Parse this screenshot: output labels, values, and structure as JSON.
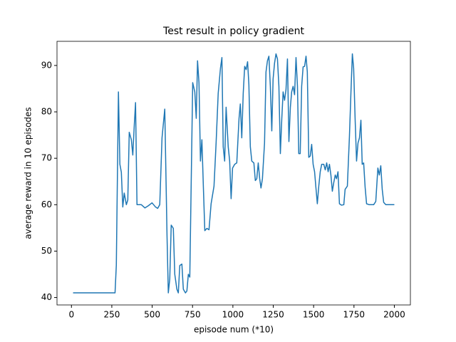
{
  "chart_data": {
    "type": "line",
    "title": "Test result in policy gradient",
    "x_label": "episode num (*10)",
    "y_label": "average reward in 10 episodes",
    "color": "#1f77b4",
    "x": [
      10,
      270,
      278,
      291,
      300,
      309,
      318,
      327,
      340,
      349,
      358,
      371,
      380,
      389,
      397,
      406,
      419,
      433,
      455,
      477,
      499,
      521,
      534,
      547,
      561,
      578,
      592,
      600,
      609,
      618,
      631,
      640,
      653,
      662,
      671,
      684,
      693,
      706,
      715,
      724,
      733,
      751,
      764,
      773,
      781,
      790,
      799,
      808,
      817,
      826,
      839,
      852,
      865,
      883,
      896,
      909,
      923,
      932,
      940,
      949,
      958,
      971,
      980,
      989,
      998,
      1011,
      1024,
      1038,
      1046,
      1055,
      1064,
      1073,
      1082,
      1091,
      1099,
      1108,
      1117,
      1130,
      1139,
      1148,
      1157,
      1166,
      1174,
      1183,
      1196,
      1205,
      1214,
      1223,
      1232,
      1241,
      1249,
      1258,
      1267,
      1276,
      1285,
      1294,
      1303,
      1311,
      1320,
      1329,
      1338,
      1347,
      1356,
      1364,
      1373,
      1382,
      1391,
      1400,
      1408,
      1417,
      1426,
      1435,
      1444,
      1453,
      1461,
      1470,
      1479,
      1488,
      1497,
      1506,
      1514,
      1523,
      1532,
      1541,
      1550,
      1563,
      1572,
      1581,
      1590,
      1598,
      1607,
      1616,
      1625,
      1634,
      1642,
      1651,
      1660,
      1673,
      1687,
      1695,
      1709,
      1722,
      1731,
      1740,
      1748,
      1757,
      1766,
      1775,
      1784,
      1793,
      1801,
      1810,
      1819,
      1828,
      1845,
      1872,
      1885,
      1898,
      1907,
      1916,
      1925,
      1934,
      1947,
      2000
    ],
    "values": [
      41,
      41,
      47,
      84.3,
      68.7,
      67,
      59.5,
      62.5,
      60,
      61,
      75.6,
      74,
      70.7,
      77,
      82,
      60,
      60,
      60,
      59.3,
      59.8,
      60.4,
      59.5,
      59.2,
      60,
      74.4,
      80.6,
      53.3,
      41,
      44,
      55.6,
      54.9,
      45,
      41.8,
      41,
      46.9,
      47.2,
      41.8,
      41,
      41.4,
      45,
      44.4,
      86.3,
      84.3,
      78.6,
      91,
      86.3,
      69.4,
      74,
      64,
      54.4,
      54.9,
      54.6,
      60.2,
      64,
      73.3,
      84,
      89.4,
      91.7,
      72.5,
      69.4,
      81,
      72.5,
      69.4,
      61.3,
      67.9,
      68.7,
      69,
      78.6,
      81.7,
      74.4,
      84,
      89.8,
      89.1,
      90.8,
      85.9,
      72.5,
      69.4,
      69,
      65.2,
      65.6,
      69,
      65.6,
      63.6,
      65.6,
      73.3,
      88.6,
      91,
      92,
      85.5,
      75.9,
      87.1,
      90.5,
      92.5,
      91.4,
      85.5,
      71,
      78.6,
      84.3,
      82.5,
      84.8,
      91.4,
      73.6,
      81,
      84.3,
      85.5,
      83.7,
      91.7,
      85.5,
      71,
      71,
      85.5,
      89.7,
      89.8,
      92,
      88.6,
      70.2,
      70.5,
      73,
      68.7,
      67.1,
      63.8,
      60.2,
      64,
      67.1,
      68.7,
      68.7,
      67.5,
      69,
      67.1,
      68.7,
      66.4,
      62.9,
      64.8,
      66.4,
      65.6,
      67.1,
      60.2,
      59.9,
      60,
      63.3,
      64,
      74.8,
      84,
      92.5,
      89.4,
      78.6,
      69.4,
      73.3,
      74.4,
      78.2,
      68.7,
      69,
      63.8,
      60.2,
      60,
      60,
      60.7,
      67.9,
      66.4,
      68.4,
      63.3,
      60.5,
      60,
      60
    ],
    "xlim": [
      -89.5,
      2099.5
    ],
    "ylim": [
      38.4,
      95.2
    ],
    "xticks": [
      0,
      250,
      500,
      750,
      1000,
      1250,
      1500,
      1750,
      2000
    ],
    "yticks": [
      40,
      50,
      60,
      70,
      80,
      90
    ]
  }
}
